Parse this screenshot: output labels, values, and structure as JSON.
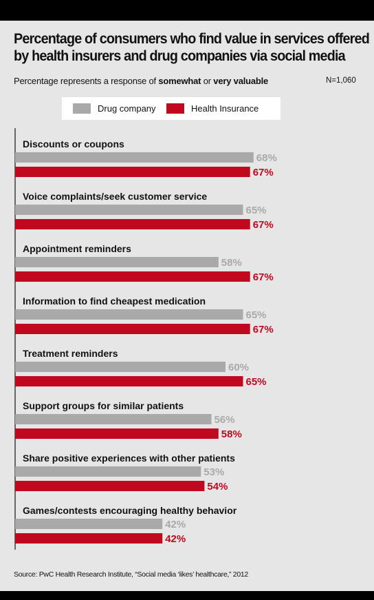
{
  "title_lines": [
    "Percentage of consumers who find value in services offered",
    "by health insurers and drug companies via social media"
  ],
  "subtitle": {
    "prefix": "Percentage represents a response of ",
    "bold1": "somewhat",
    "middle": " or ",
    "bold2": "very valuable"
  },
  "sample_size": "N=1,060",
  "source": "Source: PwC Health Research Institute, “Social media ‘likes’ healthcare,” 2012",
  "colors": {
    "drug_company": "#a9a9a9",
    "health_insurance": "#c0091f",
    "background": "#e6e6e6"
  },
  "chart_data": {
    "type": "bar",
    "orientation": "horizontal",
    "categories": [
      "Discounts or coupons",
      "Voice complaints/seek customer service",
      "Appointment reminders",
      "Information to find cheapest medication",
      "Treatment reminders",
      "Support groups for similar patients",
      "Share positive experiences with other patients",
      "Games/contests encouraging healthy behavior"
    ],
    "series": [
      {
        "name": "Drug company",
        "values": [
          68,
          65,
          58,
          65,
          60,
          56,
          53,
          42
        ],
        "labels": [
          "68%",
          "65%",
          "58%",
          "65%",
          "60%",
          "56%",
          "53%",
          "42%"
        ]
      },
      {
        "name": "Health Insurance",
        "values": [
          67,
          67,
          67,
          67,
          65,
          58,
          54,
          42
        ],
        "labels": [
          "67%",
          "67%",
          "67%",
          "67%",
          "65%",
          "58%",
          "54%",
          "42%"
        ]
      }
    ],
    "legend_position": "top",
    "grid": false
  }
}
